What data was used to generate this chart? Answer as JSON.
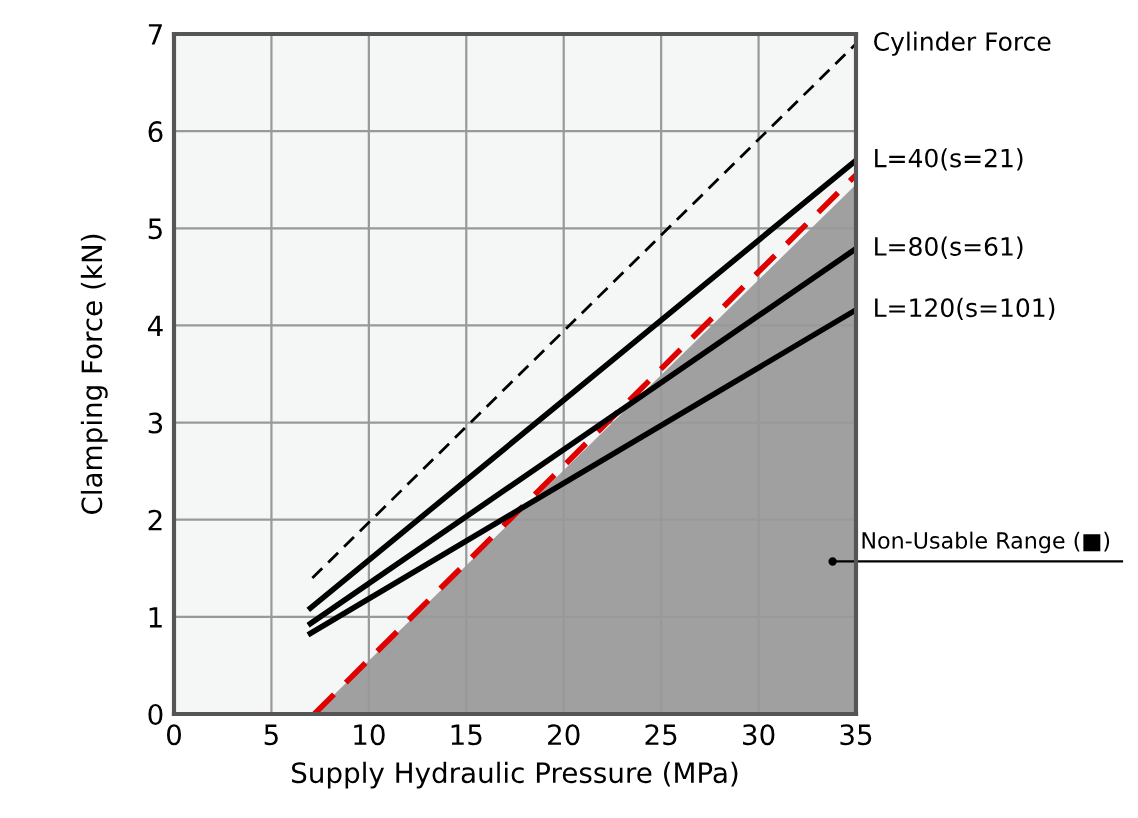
{
  "chart_data": {
    "type": "line",
    "xlabel": "Supply Hydraulic Pressure (MPa)",
    "ylabel": "Clamping Force (kN)",
    "xlim": [
      0,
      35
    ],
    "ylim": [
      0,
      7
    ],
    "xticks": [
      0,
      5,
      10,
      15,
      20,
      25,
      30,
      35
    ],
    "yticks": [
      0,
      1,
      2,
      3,
      4,
      5,
      6,
      7
    ],
    "grid": true,
    "legend": false,
    "series": [
      {
        "type": "area",
        "color": "#a0a0a0",
        "x": [
          7.2,
          35
        ],
        "values": [
          0,
          5.45
        ]
      },
      {
        "color": "#e00000",
        "line_style": "dashed",
        "x": [
          7.2,
          35
        ],
        "values": [
          0,
          5.55
        ]
      },
      {
        "name": "Cylinder Force",
        "color": "#000000",
        "line_style": "dashed",
        "x": [
          7.1,
          35
        ],
        "values": [
          1.4,
          6.9
        ]
      },
      {
        "name": "L=40(s=21)",
        "color": "#000000",
        "line_style": "solid",
        "x": [
          7,
          35
        ],
        "values": [
          1.09,
          5.7
        ]
      },
      {
        "name": "L=80(s=61)",
        "color": "#000000",
        "line_style": "solid",
        "x": [
          7,
          35
        ],
        "values": [
          0.93,
          4.79
        ]
      },
      {
        "name": "L=120(s=101)",
        "color": "#000000",
        "line_style": "solid",
        "x": [
          7,
          35
        ],
        "values": [
          0.83,
          4.16
        ]
      }
    ],
    "annotations": [
      {
        "text": "Non-Usable Range (■)",
        "x": 33.8,
        "y": 1.57
      }
    ]
  }
}
